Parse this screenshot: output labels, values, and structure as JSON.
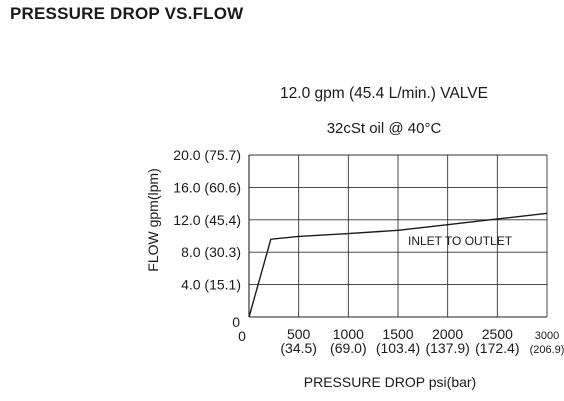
{
  "heading": "PRESSURE DROP VS.FLOW",
  "chart_data": {
    "type": "line",
    "title": "12.0 gpm (45.4 L/min.) VALVE",
    "subtitle": "32cSt oil @ 40°C",
    "xlabel": "PRESSURE  DROP psi(bar)",
    "ylabel": "FLOW  gpm(lpm)",
    "xlim": [
      0,
      3000
    ],
    "ylim": [
      0,
      20
    ],
    "grid": true,
    "x_ticks": [
      500,
      1000,
      1500,
      2000,
      2500,
      3000
    ],
    "x_tick_labels": [
      "500",
      "1000",
      "1500",
      "2000",
      "2500",
      "3000"
    ],
    "x_tick_sublabels": [
      "(34.5)",
      "(69.0)",
      "(103.4)",
      "(137.9)",
      "(172.4)",
      "(206.9)"
    ],
    "y_ticks": [
      4,
      8,
      12,
      16,
      20
    ],
    "y_tick_labels": [
      "4.0 (15.1)",
      "8.0 (30.3)",
      "12.0 (45.4)",
      "16.0 (60.6)",
      "20.0 (75.7)"
    ],
    "origin_labels": {
      "x": "0",
      "y": "0"
    },
    "annotation": "INLET TO OUTLET",
    "series": [
      {
        "x": [
          0,
          220,
          500,
          1000,
          1500,
          2000,
          2500,
          3000
        ],
        "y": [
          0,
          9.6,
          9.95,
          10.3,
          10.7,
          11.4,
          12.1,
          12.8
        ]
      }
    ]
  }
}
